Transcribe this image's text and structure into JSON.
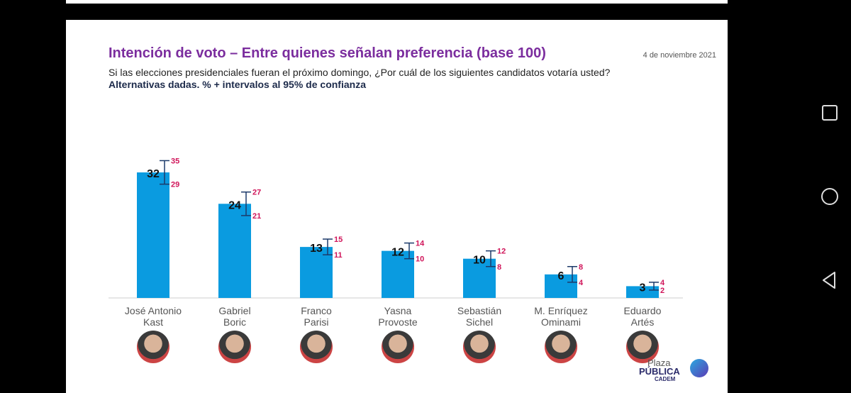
{
  "header": {
    "title": "Intención de voto – Entre quienes señalan preferencia (base 100)",
    "date": "4 de noviembre 2021",
    "question": "Si las elecciones presidenciales fueran el próximo domingo, ¿Por cuál de los siguientes candidatos votaría usted?",
    "subtitle": "Alternativas dadas. % + intervalos al 95% de confianza"
  },
  "logo": {
    "line1": "Plaza",
    "line2": "PÚBLICA",
    "line3": "CADEM"
  },
  "chart_data": {
    "type": "bar",
    "title": "Intención de voto – Entre quienes señalan preferencia (base 100)",
    "ylim": [
      0,
      40
    ],
    "categories": [
      [
        "José Antonio",
        "Kast"
      ],
      [
        "Gabriel",
        "Boric"
      ],
      [
        "Franco",
        "Parisi"
      ],
      [
        "Yasna",
        "Provoste"
      ],
      [
        "Sebastián",
        "Sichel"
      ],
      [
        "M. Enríquez",
        "Ominami"
      ],
      [
        "Eduardo",
        "Artés"
      ]
    ],
    "values": [
      32,
      24,
      13,
      12,
      10,
      6,
      3
    ],
    "upper": [
      35,
      27,
      15,
      14,
      12,
      8,
      4
    ],
    "lower": [
      29,
      21,
      11,
      10,
      8,
      4,
      2
    ],
    "colors": {
      "bar": "#0a9be0",
      "ci": "#1c3a6a",
      "ci_label": "#d0155a"
    }
  }
}
